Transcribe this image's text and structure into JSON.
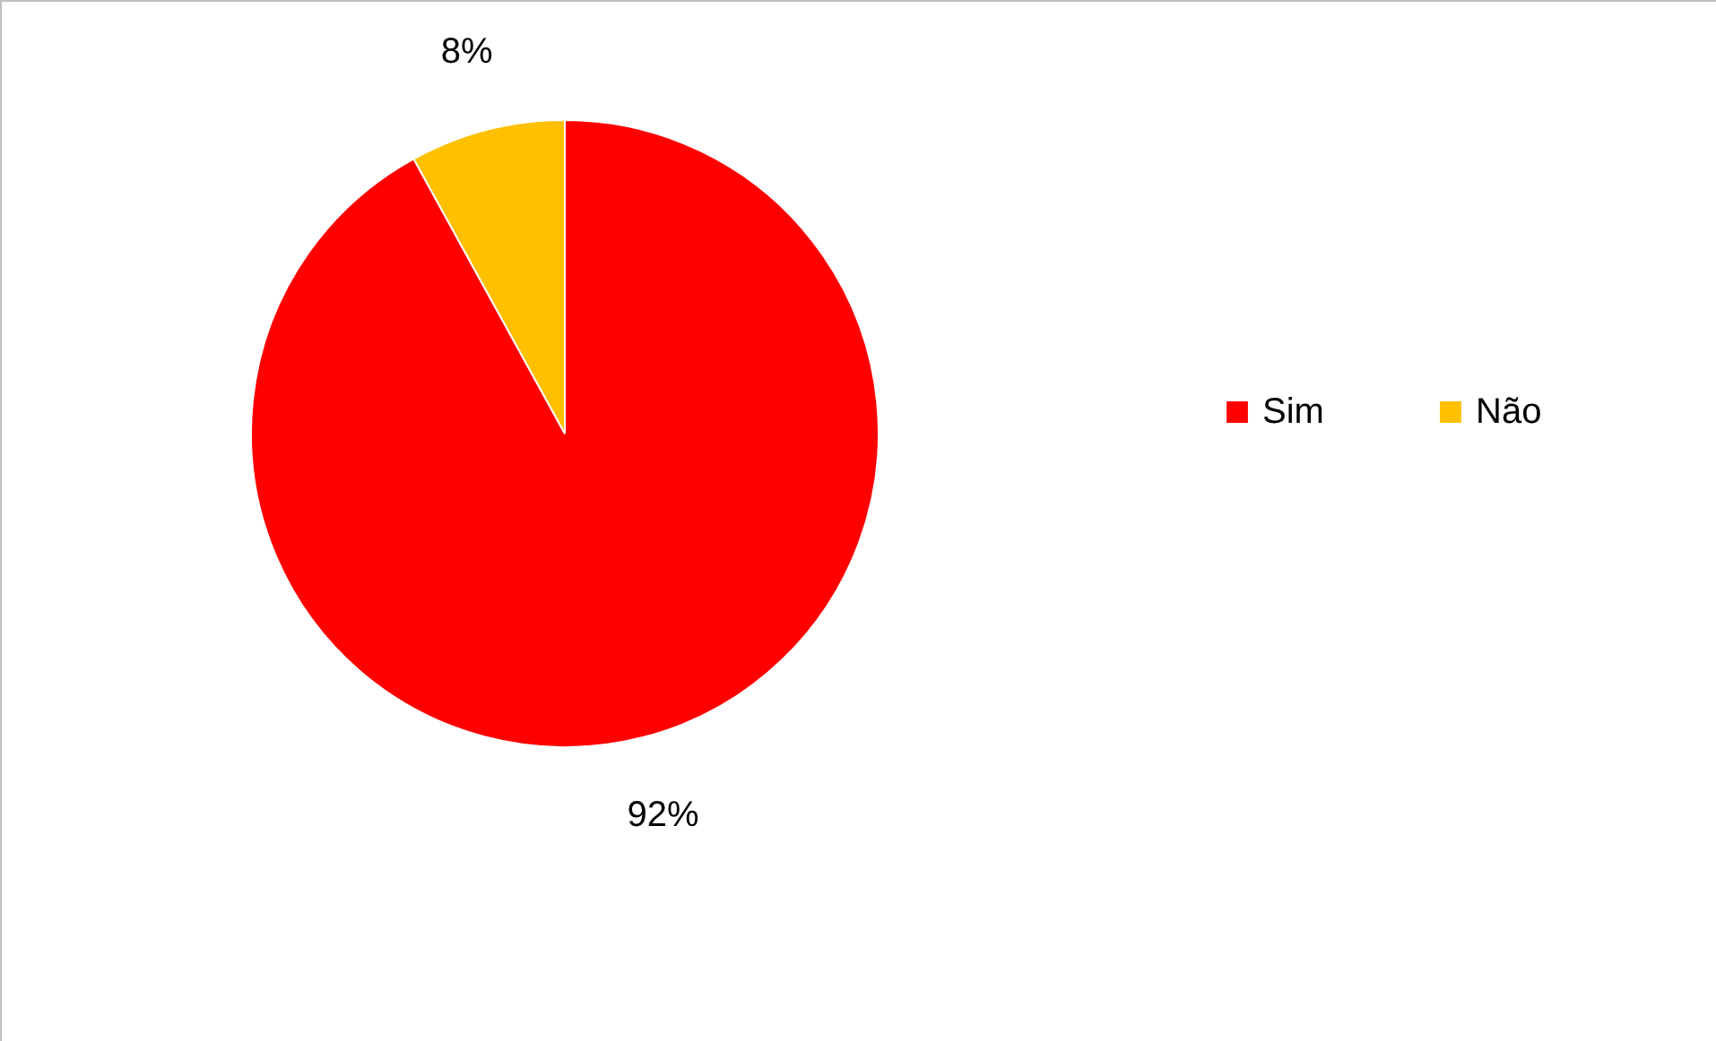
{
  "chart_data": {
    "type": "pie",
    "categories": [
      "Sim",
      "Não"
    ],
    "values": [
      92,
      8
    ],
    "colors": [
      "#ff0000",
      "#ffc000"
    ],
    "value_labels": [
      "92%",
      "8%"
    ],
    "legend": "right"
  }
}
